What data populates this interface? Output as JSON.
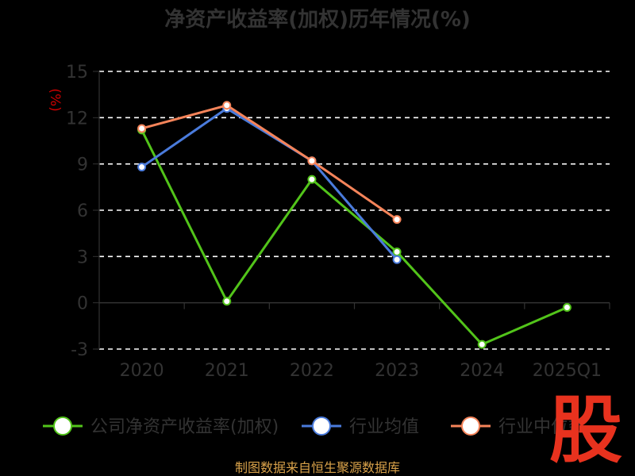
{
  "chart_data": {
    "type": "line",
    "title": "净资产收益率(加权)历年情况(%)",
    "ylabel": "(%)",
    "categories": [
      "2020",
      "2021",
      "2022",
      "2023",
      "2024",
      "2025Q1"
    ],
    "ylim": [
      -3,
      15
    ],
    "yticks": [
      15,
      12,
      9,
      6,
      3,
      0,
      -3
    ],
    "grid": true,
    "legend_position": "bottom",
    "series": [
      {
        "name": "公司净资产收益率(加权)",
        "color": "#52c41a",
        "values": [
          11.2,
          0.1,
          8.0,
          3.3,
          -2.7,
          -0.3
        ]
      },
      {
        "name": "行业均值",
        "color": "#4a7bdc",
        "values": [
          8.8,
          12.6,
          9.2,
          2.8,
          null,
          null
        ]
      },
      {
        "name": "行业中位数",
        "color": "#f5845a",
        "values": [
          11.3,
          12.8,
          9.2,
          5.4,
          null,
          null
        ]
      }
    ]
  },
  "footer": {
    "source": "制图数据来自恒生聚源数据库",
    "logo_text": "股"
  }
}
